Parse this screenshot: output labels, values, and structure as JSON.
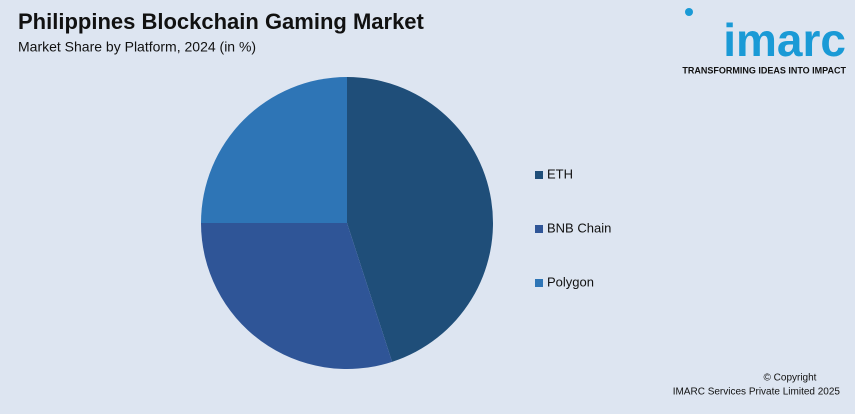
{
  "chart_data": {
    "type": "pie",
    "title": "Philippines Blockchain Gaming Market",
    "subtitle": "Market Share by Platform, 2024 (in %)",
    "categories": [
      "ETH",
      "BNB Chain",
      "Polygon"
    ],
    "values": [
      45,
      30,
      25
    ],
    "colors": [
      "#1f4e79",
      "#2f5597",
      "#2e75b6"
    ],
    "legend": "right"
  },
  "logo": {
    "name": "imarc",
    "tagline": "TRANSFORMING IDEAS INTO IMPACT"
  },
  "footer": {
    "copyright": "© Copyright",
    "owner": "IMARC Services Private Limited 2025"
  }
}
